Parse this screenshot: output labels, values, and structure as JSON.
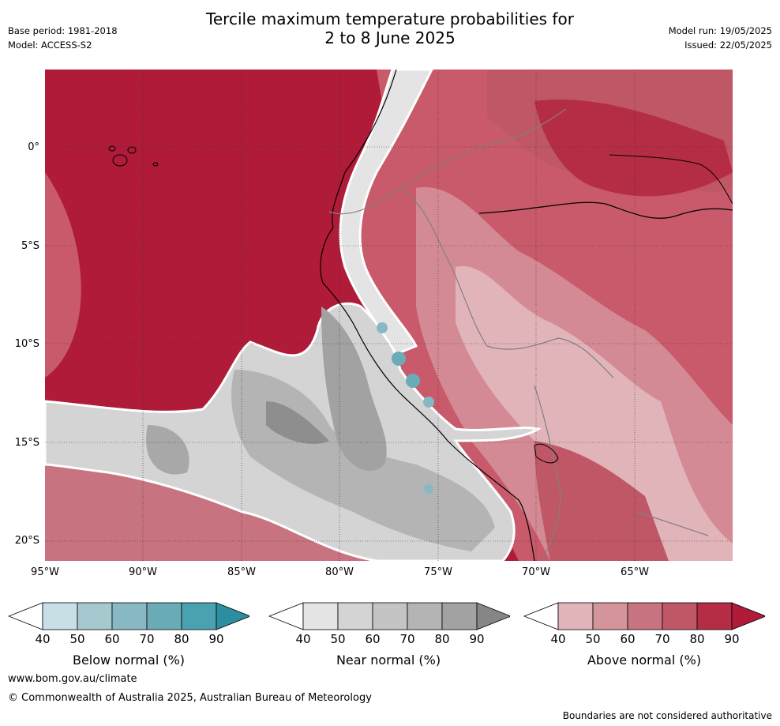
{
  "title": {
    "line1": "Tercile maximum temperature probabilities for",
    "line2": "2 to 8 June 2025"
  },
  "meta_left": {
    "base_period": "Base period: 1981-2018",
    "model": "Model: ACCESS-S2"
  },
  "meta_right": {
    "model_run": "Model run: 19/05/2025",
    "issued": "Issued: 22/05/2025"
  },
  "map": {
    "lat_labels": [
      "0°",
      "5°S",
      "10°S",
      "15°S",
      "20°S"
    ],
    "lon_labels": [
      "95°W",
      "90°W",
      "85°W",
      "80°W",
      "75°W",
      "70°W",
      "65°W"
    ]
  },
  "colorbars": [
    {
      "label": "Below normal (%)",
      "ticks": [
        "40",
        "50",
        "60",
        "70",
        "80",
        "90"
      ],
      "colors": [
        "#c8e0e5",
        "#a6c9cf",
        "#88b8c3",
        "#6aabb8",
        "#4aa2b0",
        "#2c8fa1"
      ]
    },
    {
      "label": "Near normal (%)",
      "ticks": [
        "40",
        "50",
        "60",
        "70",
        "80",
        "90"
      ],
      "colors": [
        "#e4e4e4",
        "#d4d4d4",
        "#c4c4c4",
        "#b4b4b4",
        "#a2a2a2",
        "#868686"
      ]
    },
    {
      "label": "Above normal (%)",
      "ticks": [
        "40",
        "50",
        "60",
        "70",
        "80",
        "90"
      ],
      "colors": [
        "#e1b4ba",
        "#d3949c",
        "#c87380",
        "#bf5766",
        "#b52d45",
        "#b01b3a"
      ]
    }
  ],
  "footer": {
    "url": "www.bom.gov.au/climate",
    "copyright": "© Commonwealth of Australia 2025, Australian Bureau of Meteorology",
    "note": "Boundaries are not considered authoritative"
  }
}
